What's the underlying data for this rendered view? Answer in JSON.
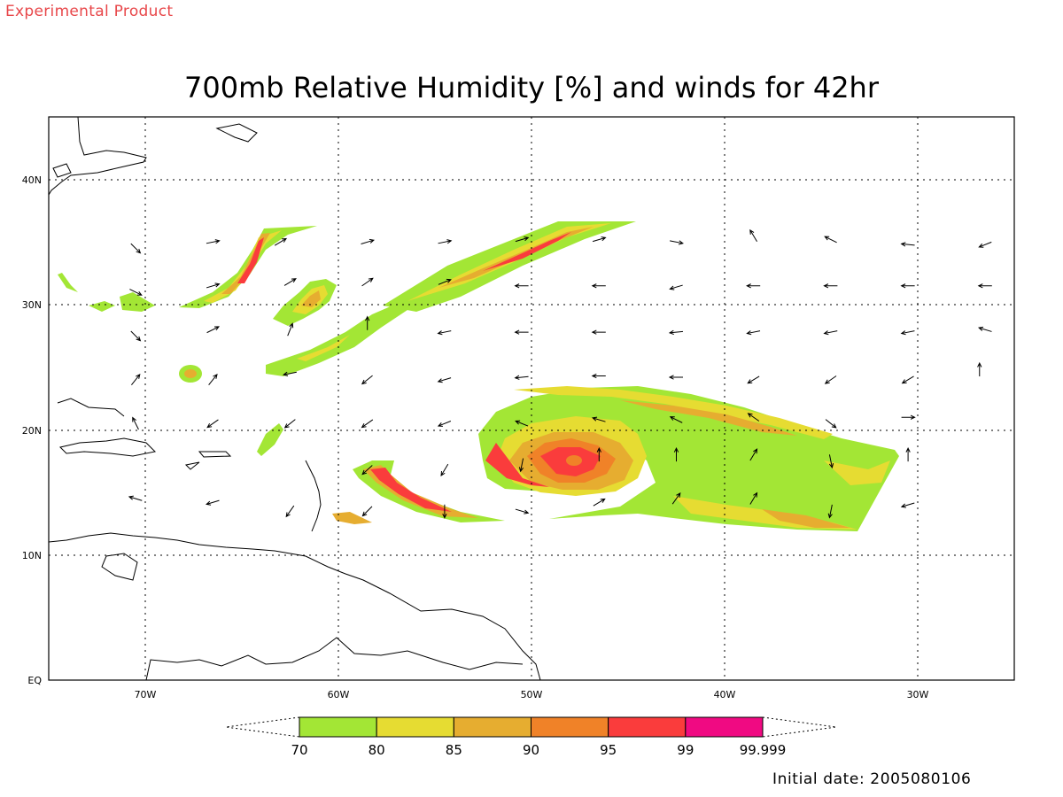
{
  "header": {
    "experimental": "Experimental Product",
    "title": "700mb Relative Humidity [%] and winds for 42hr"
  },
  "footer": {
    "initial_date": "Initial date: 2005080106"
  },
  "map": {
    "lon_range": [
      -75,
      -25
    ],
    "lat_range": [
      0,
      45
    ],
    "lon_ticks": [
      {
        "lon": -70,
        "label": "70W"
      },
      {
        "lon": -60,
        "label": "60W"
      },
      {
        "lon": -50,
        "label": "50W"
      },
      {
        "lon": -40,
        "label": "40W"
      },
      {
        "lon": -30,
        "label": "30W"
      }
    ],
    "lat_ticks": [
      {
        "lat": 0,
        "label": "EQ"
      },
      {
        "lat": 10,
        "label": "10N"
      },
      {
        "lat": 20,
        "label": "20N"
      },
      {
        "lat": 30,
        "label": "30N"
      },
      {
        "lat": 40,
        "label": "40N"
      }
    ],
    "grid_lons": [
      -70,
      -60,
      -50,
      -40,
      -30
    ],
    "grid_lats": [
      10,
      20,
      30,
      40
    ]
  },
  "colorbar": {
    "bins": [
      {
        "from": "70",
        "to": "80",
        "color": "#a3e635"
      },
      {
        "from": "80",
        "to": "85",
        "color": "#e6dc32"
      },
      {
        "from": "85",
        "to": "90",
        "color": "#e6ad30"
      },
      {
        "from": "90",
        "to": "95",
        "color": "#f08228"
      },
      {
        "from": "95",
        "to": "99",
        "color": "#fa3c3c"
      },
      {
        "from": "99",
        "to": "99.999",
        "color": "#f00a82"
      }
    ],
    "labels": [
      "70",
      "80",
      "85",
      "90",
      "95",
      "99",
      "99.999"
    ]
  },
  "wind_vectors": [
    {
      "lon": -70.5,
      "lat": 34.5,
      "u": 1,
      "v": -1
    },
    {
      "lon": -66.5,
      "lat": 35,
      "u": 1,
      "v": 0.2
    },
    {
      "lon": -63,
      "lat": 35,
      "u": 1,
      "v": 0.6
    },
    {
      "lon": -58.5,
      "lat": 35,
      "u": 1,
      "v": 0.3
    },
    {
      "lon": -54.5,
      "lat": 35,
      "u": 1,
      "v": 0.2
    },
    {
      "lon": -50.5,
      "lat": 35.2,
      "u": 1,
      "v": 0.3
    },
    {
      "lon": -46.5,
      "lat": 35.2,
      "u": 1,
      "v": 0.3
    },
    {
      "lon": -42.5,
      "lat": 35,
      "u": 1,
      "v": -0.2
    },
    {
      "lon": -38.5,
      "lat": 35.5,
      "u": -0.6,
      "v": 1
    },
    {
      "lon": -34.5,
      "lat": 35.2,
      "u": -1,
      "v": 0.5
    },
    {
      "lon": -30.5,
      "lat": 34.8,
      "u": -1,
      "v": 0.1
    },
    {
      "lon": -26.5,
      "lat": 34.8,
      "u": -1,
      "v": -0.4
    },
    {
      "lon": -70.5,
      "lat": 31,
      "u": 1,
      "v": -0.5
    },
    {
      "lon": -66.5,
      "lat": 31.5,
      "u": 1,
      "v": 0.3
    },
    {
      "lon": -62.5,
      "lat": 31.8,
      "u": 1,
      "v": 0.6
    },
    {
      "lon": -58.5,
      "lat": 31.8,
      "u": 1,
      "v": 0.7
    },
    {
      "lon": -54.5,
      "lat": 31.8,
      "u": 1,
      "v": 0.4
    },
    {
      "lon": -50.5,
      "lat": 31.5,
      "u": -1,
      "v": 0
    },
    {
      "lon": -46.5,
      "lat": 31.5,
      "u": -1,
      "v": 0
    },
    {
      "lon": -42.5,
      "lat": 31.4,
      "u": -1,
      "v": -0.3
    },
    {
      "lon": -38.5,
      "lat": 31.5,
      "u": -1,
      "v": 0
    },
    {
      "lon": -34.5,
      "lat": 31.5,
      "u": -1,
      "v": 0
    },
    {
      "lon": -30.5,
      "lat": 31.5,
      "u": -1,
      "v": 0
    },
    {
      "lon": -26.5,
      "lat": 31.5,
      "u": -1,
      "v": 0
    },
    {
      "lon": -70.5,
      "lat": 27.5,
      "u": 1,
      "v": -1
    },
    {
      "lon": -66.5,
      "lat": 28,
      "u": 1,
      "v": 0.5
    },
    {
      "lon": -62.5,
      "lat": 28,
      "u": 0.4,
      "v": 1
    },
    {
      "lon": -58.5,
      "lat": 28.5,
      "u": 0,
      "v": 1
    },
    {
      "lon": -54.5,
      "lat": 27.8,
      "u": -1,
      "v": -0.2
    },
    {
      "lon": -50.5,
      "lat": 27.8,
      "u": -1,
      "v": 0
    },
    {
      "lon": -46.5,
      "lat": 27.8,
      "u": -1,
      "v": 0
    },
    {
      "lon": -42.5,
      "lat": 27.8,
      "u": -1,
      "v": -0.1
    },
    {
      "lon": -38.5,
      "lat": 27.8,
      "u": -1,
      "v": -0.2
    },
    {
      "lon": -34.5,
      "lat": 27.8,
      "u": -1,
      "v": -0.2
    },
    {
      "lon": -30.5,
      "lat": 27.8,
      "u": -1,
      "v": -0.2
    },
    {
      "lon": -26.5,
      "lat": 28,
      "u": -1,
      "v": 0.3
    },
    {
      "lon": -70.5,
      "lat": 24,
      "u": 0.8,
      "v": 1
    },
    {
      "lon": -66.5,
      "lat": 24,
      "u": 0.8,
      "v": 1
    },
    {
      "lon": -62.5,
      "lat": 24.5,
      "u": -1,
      "v": -0.2
    },
    {
      "lon": -58.5,
      "lat": 24,
      "u": -1,
      "v": -0.8
    },
    {
      "lon": -54.5,
      "lat": 24,
      "u": -1,
      "v": -0.3
    },
    {
      "lon": -50.5,
      "lat": 24.2,
      "u": -1,
      "v": -0.1
    },
    {
      "lon": -46.5,
      "lat": 24.3,
      "u": -1,
      "v": 0
    },
    {
      "lon": -42.5,
      "lat": 24.2,
      "u": -1,
      "v": 0
    },
    {
      "lon": -38.5,
      "lat": 24,
      "u": -1,
      "v": -0.6
    },
    {
      "lon": -34.5,
      "lat": 24,
      "u": -1,
      "v": -0.7
    },
    {
      "lon": -30.5,
      "lat": 24,
      "u": -1,
      "v": -0.6
    },
    {
      "lon": -26.8,
      "lat": 24.8,
      "u": 0,
      "v": 1
    },
    {
      "lon": -70.5,
      "lat": 20.5,
      "u": -0.5,
      "v": 1
    },
    {
      "lon": -66.5,
      "lat": 20.5,
      "u": -1,
      "v": -0.7
    },
    {
      "lon": -62.5,
      "lat": 20.5,
      "u": -1,
      "v": -0.8
    },
    {
      "lon": -58.5,
      "lat": 20.5,
      "u": -1,
      "v": -0.7
    },
    {
      "lon": -54.5,
      "lat": 20.5,
      "u": -1,
      "v": -0.4
    },
    {
      "lon": -50.5,
      "lat": 20.5,
      "u": -1,
      "v": 0.4
    },
    {
      "lon": -46.5,
      "lat": 20.8,
      "u": -1,
      "v": 0.3
    },
    {
      "lon": -42.5,
      "lat": 20.8,
      "u": -1,
      "v": 0.5
    },
    {
      "lon": -38.5,
      "lat": 21,
      "u": -1,
      "v": 0.7
    },
    {
      "lon": -34.5,
      "lat": 20.5,
      "u": 1,
      "v": -0.8
    },
    {
      "lon": -30.5,
      "lat": 21,
      "u": 1,
      "v": 0
    },
    {
      "lon": -70.5,
      "lat": 14.5,
      "u": -1,
      "v": 0.3
    },
    {
      "lon": -66.5,
      "lat": 14.2,
      "u": -1,
      "v": -0.3
    },
    {
      "lon": -62.5,
      "lat": 13.5,
      "u": -0.7,
      "v": -1
    },
    {
      "lon": -58.5,
      "lat": 16.8,
      "u": -1,
      "v": -0.9
    },
    {
      "lon": -54.5,
      "lat": 16.8,
      "u": -0.6,
      "v": -1
    },
    {
      "lon": -50.5,
      "lat": 17.2,
      "u": -0.2,
      "v": -1
    },
    {
      "lon": -46.5,
      "lat": 18,
      "u": 0,
      "v": 1
    },
    {
      "lon": -42.5,
      "lat": 18,
      "u": 0,
      "v": 1
    },
    {
      "lon": -38.5,
      "lat": 18,
      "u": 0.6,
      "v": 1
    },
    {
      "lon": -34.5,
      "lat": 17.5,
      "u": 0.2,
      "v": -1
    },
    {
      "lon": -30.5,
      "lat": 18,
      "u": 0,
      "v": 1
    },
    {
      "lon": -58.5,
      "lat": 13.5,
      "u": -0.7,
      "v": -0.7
    },
    {
      "lon": -54.5,
      "lat": 13.5,
      "u": 0,
      "v": -1
    },
    {
      "lon": -50.5,
      "lat": 13.5,
      "u": 1,
      "v": -0.3
    },
    {
      "lon": -46.5,
      "lat": 14.2,
      "u": 1,
      "v": 0.6
    },
    {
      "lon": -42.5,
      "lat": 14.5,
      "u": 0.7,
      "v": 1
    },
    {
      "lon": -38.5,
      "lat": 14.5,
      "u": 0.6,
      "v": 1
    },
    {
      "lon": -34.5,
      "lat": 13.5,
      "u": -0.2,
      "v": -1
    },
    {
      "lon": -30.5,
      "lat": 14,
      "u": -1,
      "v": -0.3
    }
  ]
}
